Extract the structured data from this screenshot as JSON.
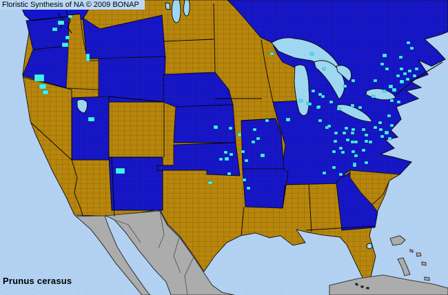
{
  "header": {
    "title": "Floristic Synthesis of NA © 2009 BONAP"
  },
  "footer": {
    "species": "Prunus cerasus"
  },
  "colors": {
    "ocean": "#A8CAEE",
    "ocean_dither": "#BCD8F5",
    "present_state": "#1414CC",
    "present_county": "#3FF2F2",
    "absent_state": "#B8860B",
    "outside_coverage": "#ACACAC",
    "lake": "#9ED7F2",
    "county_line": "#6B6345"
  },
  "map_data": {
    "type": "choropleth-distribution-map",
    "status_classes": {
      "blue": "state-or-province-present",
      "cyan": "county-documented",
      "gold": "state-or-province-absent",
      "gray": "outside-coverage"
    },
    "regions": {
      "canada_blue": [
        "British Columbia",
        "Ontario",
        "Quebec",
        "Maritimes",
        "Labrador"
      ],
      "canada_gold": [
        "Alberta",
        "Saskatchewan",
        "Manitoba"
      ],
      "us_blue": [
        "WA",
        "OR",
        "MT",
        "WY",
        "UT",
        "NM",
        "NE",
        "KS",
        "OK",
        "MO",
        "AR",
        "IL",
        "IN",
        "MI",
        "OH",
        "KY",
        "TN",
        "GA",
        "PA",
        "NY",
        "NJ",
        "MD",
        "DE",
        "VA",
        "WV",
        "NC",
        "ME",
        "NH",
        "VT",
        "MA",
        "RI",
        "CT"
      ],
      "us_gold": [
        "CA",
        "NV",
        "ID",
        "AZ",
        "CO",
        "ND",
        "SD",
        "MN",
        "IA",
        "WI",
        "TX",
        "LA",
        "MS",
        "AL",
        "FL",
        "SC"
      ],
      "outside_gray": [
        "Mexico",
        "Cuba",
        "Bahamas"
      ]
    },
    "county_markers": [
      [
        84,
        30,
        9,
        6
      ],
      [
        76,
        40,
        7,
        5
      ],
      [
        95,
        52,
        6,
        5
      ],
      [
        99,
        22,
        6,
        4
      ],
      [
        50,
        108,
        14,
        10
      ],
      [
        57,
        122,
        10,
        7
      ],
      [
        62,
        131,
        8,
        6
      ],
      [
        90,
        62,
        9,
        6
      ],
      [
        125,
        78,
        5,
        11
      ],
      [
        128,
        170,
        9,
        6
      ],
      [
        168,
        244,
        13,
        8
      ],
      [
        310,
        182,
        6,
        5
      ],
      [
        332,
        184,
        5,
        4
      ],
      [
        345,
        193,
        5,
        5
      ],
      [
        367,
        186,
        5,
        4
      ],
      [
        372,
        199,
        5,
        4
      ],
      [
        385,
        173,
        5,
        4
      ],
      [
        415,
        171,
        6,
        5
      ],
      [
        325,
        219,
        5,
        4
      ],
      [
        333,
        222,
        5,
        4
      ],
      [
        326,
        228,
        6,
        5
      ],
      [
        318,
        229,
        5,
        4
      ],
      [
        350,
        218,
        5,
        4
      ],
      [
        355,
        231,
        5,
        4
      ],
      [
        365,
        204,
        5,
        4
      ],
      [
        378,
        223,
        6,
        5
      ],
      [
        302,
        263,
        6,
        4
      ],
      [
        352,
        259,
        5,
        4
      ],
      [
        358,
        271,
        5,
        4
      ],
      [
        330,
        250,
        5,
        4
      ],
      [
        459,
        154,
        5,
        4
      ],
      [
        489,
        156,
        5,
        4
      ],
      [
        509,
        151,
        5,
        4
      ],
      [
        520,
        154,
        5,
        4
      ],
      [
        472,
        183,
        5,
        4
      ],
      [
        500,
        184,
        5,
        4
      ],
      [
        510,
        186,
        5,
        4
      ],
      [
        525,
        186,
        5,
        4
      ],
      [
        484,
        203,
        5,
        4
      ],
      [
        509,
        204,
        5,
        4
      ],
      [
        529,
        203,
        5,
        4
      ],
      [
        492,
        213,
        5,
        4
      ],
      [
        514,
        224,
        5,
        4
      ],
      [
        482,
        241,
        5,
        4
      ],
      [
        512,
        236,
        5,
        4
      ],
      [
        529,
        194,
        5,
        4
      ],
      [
        450,
        76,
        5,
        4
      ],
      [
        392,
        76,
        5,
        4
      ],
      [
        452,
        130,
        5,
        4
      ],
      [
        466,
        138,
        5,
        4
      ],
      [
        478,
        146,
        5,
        4
      ],
      [
        460,
        153,
        5,
        4
      ],
      [
        445,
        148,
        5,
        4
      ],
      [
        468,
        98,
        4,
        4
      ],
      [
        555,
        78,
        6,
        5
      ],
      [
        552,
        91,
        5,
        4
      ],
      [
        559,
        98,
        5,
        4
      ],
      [
        579,
        81,
        5,
        4
      ],
      [
        590,
        60,
        5,
        4
      ],
      [
        595,
        68,
        5,
        4
      ],
      [
        580,
        98,
        5,
        4
      ],
      [
        585,
        105,
        5,
        4
      ],
      [
        575,
        108,
        5,
        4
      ],
      [
        580,
        116,
        6,
        5
      ],
      [
        589,
        113,
        5,
        4
      ],
      [
        592,
        101,
        5,
        4
      ],
      [
        599,
        108,
        5,
        4
      ],
      [
        602,
        98,
        5,
        4
      ],
      [
        542,
        115,
        5,
        4
      ],
      [
        564,
        123,
        6,
        5
      ],
      [
        569,
        128,
        6,
        5
      ],
      [
        555,
        130,
        5,
        4
      ],
      [
        539,
        138,
        5,
        4
      ],
      [
        462,
        135,
        5,
        4
      ],
      [
        510,
        115,
        5,
        4
      ],
      [
        498,
        123,
        5,
        4
      ],
      [
        566,
        144,
        5,
        4
      ],
      [
        576,
        146,
        5,
        4
      ],
      [
        434,
        144,
        5,
        4
      ],
      [
        447,
        149,
        5,
        4
      ],
      [
        462,
        173,
        5,
        4
      ],
      [
        475,
        181,
        5,
        4
      ],
      [
        485,
        191,
        5,
        4
      ],
      [
        497,
        191,
        5,
        4
      ],
      [
        509,
        191,
        5,
        4
      ],
      [
        502,
        201,
        5,
        4
      ],
      [
        514,
        204,
        5,
        4
      ],
      [
        482,
        218,
        5,
        4
      ],
      [
        495,
        219,
        5,
        4
      ],
      [
        510,
        218,
        5,
        4
      ],
      [
        525,
        216,
        5,
        4
      ],
      [
        535,
        204,
        5,
        4
      ],
      [
        542,
        183,
        5,
        4
      ],
      [
        549,
        176,
        5,
        4
      ],
      [
        550,
        186,
        5,
        4
      ],
      [
        512,
        238,
        5,
        4
      ],
      [
        529,
        234,
        5,
        4
      ],
      [
        468,
        249,
        5,
        4
      ],
      [
        492,
        251,
        5,
        4
      ],
      [
        562,
        166,
        5,
        4
      ],
      [
        566,
        180,
        5,
        4
      ],
      [
        558,
        190,
        6,
        5
      ],
      [
        552,
        196,
        5,
        4
      ],
      [
        563,
        199,
        5,
        4
      ]
    ],
    "small_lakes": [
      "Great Salt Lake",
      "Lake Okeechobee",
      "Lake Winnipeg"
    ],
    "great_lakes": [
      "Superior",
      "Michigan",
      "Huron",
      "Erie",
      "Ontario"
    ]
  }
}
